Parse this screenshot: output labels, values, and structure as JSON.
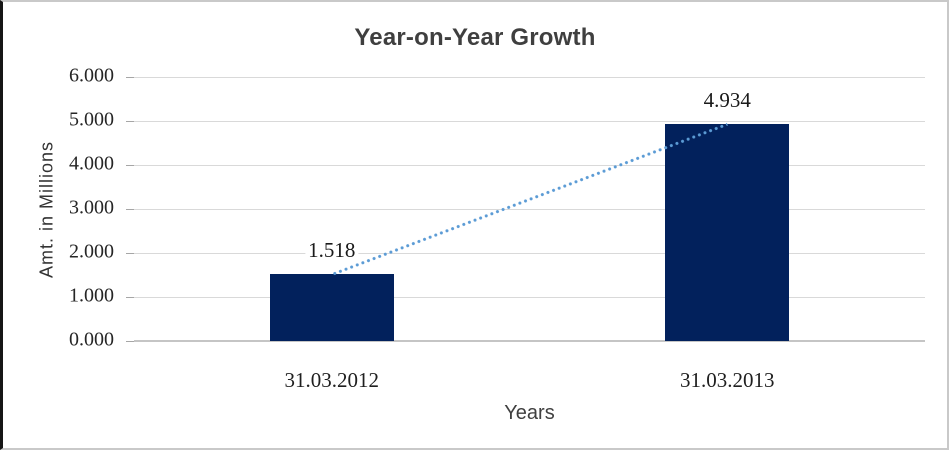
{
  "chart_data": {
    "type": "bar",
    "title": "Year-on-Year Growth",
    "xlabel": "Years",
    "ylabel": "Amt. in Millions",
    "categories": [
      "31.03.2012",
      "31.03.2013"
    ],
    "values": [
      1.518,
      4.934
    ],
    "data_labels": [
      "1.518",
      "4.934"
    ],
    "ylim": [
      0,
      6
    ],
    "ytick_labels": [
      "0.000",
      "1.000",
      "2.000",
      "3.000",
      "4.000",
      "5.000",
      "6.000"
    ],
    "grid": true,
    "legend": "none",
    "trendline": true,
    "colors": {
      "bar": "#02215c",
      "trendline": "#5b9bd5",
      "gridline": "#d9d9d9",
      "baseline": "#c5c5c5",
      "tick": "#a6a6a6",
      "title_text": "#3f3f3f",
      "label_text": "#1a1a1a",
      "frame": "#c9c9c9"
    }
  }
}
